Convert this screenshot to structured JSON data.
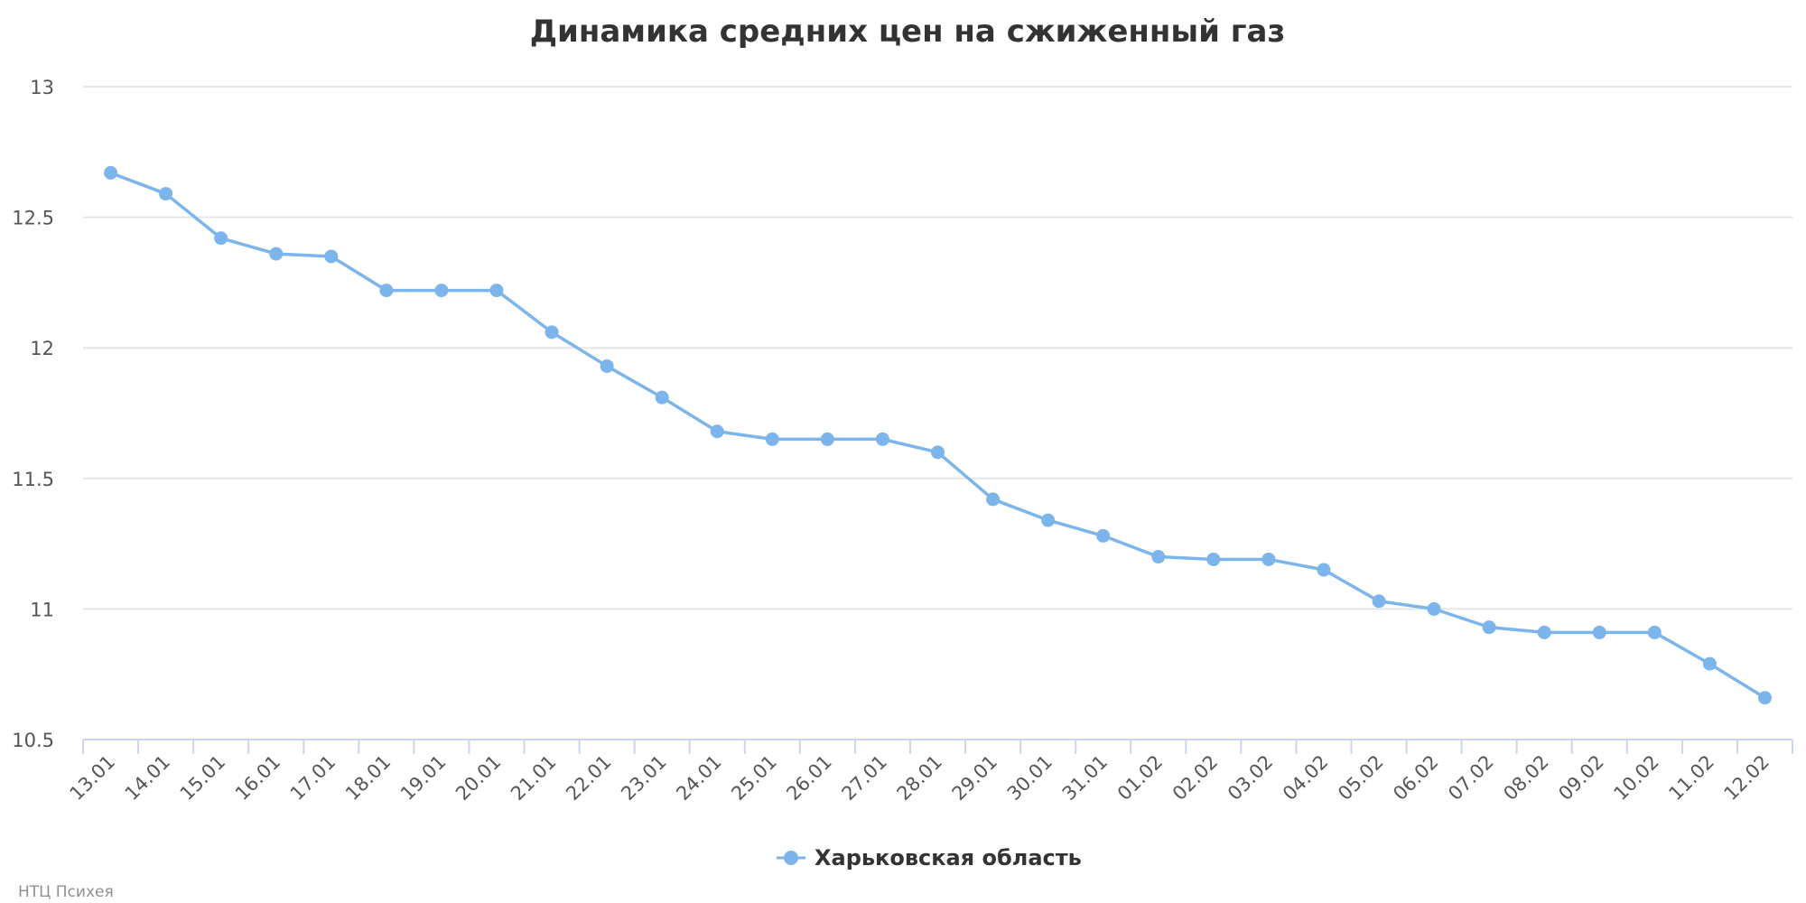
{
  "chart_data": {
    "type": "line",
    "title": "Динамика средних цен на сжиженный газ",
    "xlabel": "",
    "ylabel": "",
    "ylim": [
      10.5,
      13
    ],
    "yticks": [
      "10.5",
      "11",
      "11.5",
      "12",
      "12.5",
      "13"
    ],
    "grid": true,
    "legend_position": "bottom-center",
    "categories": [
      "13.01",
      "14.01",
      "15.01",
      "16.01",
      "17.01",
      "18.01",
      "19.01",
      "20.01",
      "21.01",
      "22.01",
      "23.01",
      "24.01",
      "25.01",
      "26.01",
      "27.01",
      "28.01",
      "29.01",
      "30.01",
      "31.01",
      "01.02",
      "02.02",
      "03.02",
      "04.02",
      "05.02",
      "06.02",
      "07.02",
      "08.02",
      "09.02",
      "10.02",
      "11.02",
      "12.02"
    ],
    "series": [
      {
        "name": "Харьковская область",
        "color": "#7cb5ec",
        "values": [
          12.67,
          12.59,
          12.42,
          12.36,
          12.35,
          12.22,
          12.22,
          12.22,
          12.06,
          11.93,
          11.81,
          11.68,
          11.65,
          11.65,
          11.65,
          11.6,
          11.42,
          11.34,
          11.28,
          11.2,
          11.19,
          11.19,
          11.15,
          11.03,
          11.0,
          10.93,
          10.91,
          10.91,
          10.91,
          10.79,
          10.66
        ]
      }
    ]
  },
  "credits": "НТЦ Психея"
}
